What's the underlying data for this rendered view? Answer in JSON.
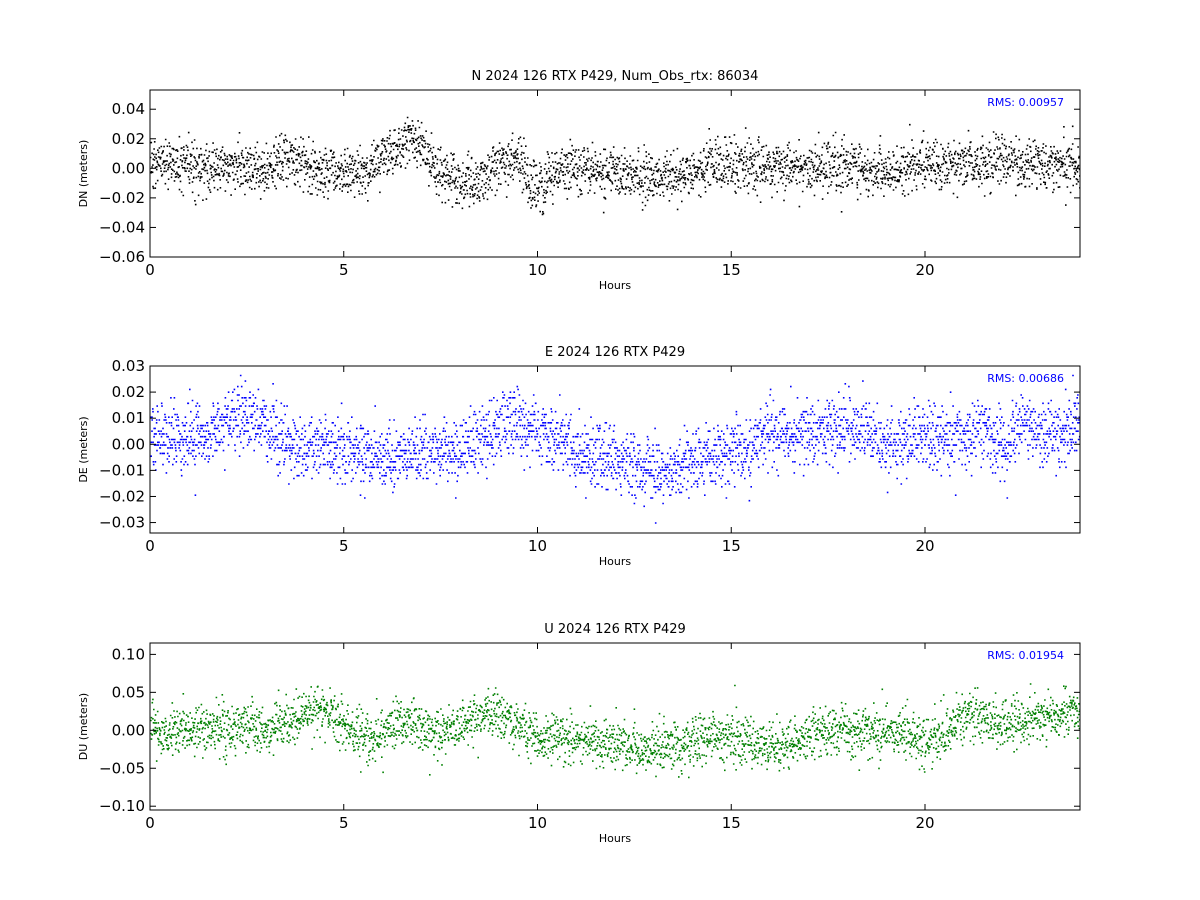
{
  "chart_data": [
    {
      "type": "scatter",
      "title": "N 2024 126 RTX  P429, Num_Obs_rtx: 86034",
      "xlabel": "Hours",
      "ylabel": "DN (meters)",
      "xlim": [
        0,
        24
      ],
      "ylim": [
        -0.06,
        0.053
      ],
      "xticks": [
        0,
        5,
        10,
        15,
        20
      ],
      "xtick_labels": [
        "0",
        "5",
        "10",
        "15",
        "20"
      ],
      "yticks": [
        -0.06,
        -0.04,
        -0.02,
        0.0,
        0.02,
        0.04
      ],
      "ytick_labels": [
        "−0.06",
        "−0.04",
        "−0.02",
        "0.00",
        "0.02",
        "0.04"
      ],
      "annotation": "RMS:  0.00957",
      "annotation_color": "#0000ff",
      "marker_color": "#000000",
      "grid": false,
      "trend_x": [
        0,
        0.5,
        1,
        1.5,
        2,
        2.5,
        3,
        3.5,
        4,
        4.5,
        5,
        5.5,
        6,
        6.5,
        6.75,
        7,
        7.5,
        8,
        8.5,
        9,
        9.5,
        9.75,
        10,
        10.5,
        11,
        11.5,
        12,
        12.5,
        13,
        13.5,
        14,
        14.5,
        15,
        15.5,
        16,
        16.5,
        17,
        17.5,
        18,
        18.5,
        19,
        19.5,
        20,
        20.5,
        21,
        21.5,
        22,
        22.5,
        23,
        23.5,
        24
      ],
      "trend_y": [
        0.002,
        0.006,
        0.001,
        0.0,
        0.002,
        0.0,
        -0.001,
        0.008,
        0.003,
        -0.001,
        -0.003,
        -0.002,
        0.008,
        0.02,
        0.022,
        0.012,
        -0.002,
        -0.01,
        -0.008,
        0.002,
        0.008,
        -0.01,
        -0.014,
        -0.002,
        0.0,
        -0.004,
        0.001,
        -0.004,
        -0.006,
        -0.004,
        -0.001,
        0.001,
        0.002,
        0.002,
        0.001,
        0.002,
        0.0,
        0.002,
        0.003,
        0.001,
        -0.003,
        0.001,
        0.004,
        0.003,
        0.004,
        0.004,
        0.006,
        0.004,
        0.002,
        0.004,
        0.004
      ],
      "spread_sigma": 0.0085,
      "num_points_drawn": 3400
    },
    {
      "type": "scatter",
      "title": "E 2024 126 RTX  P429",
      "xlabel": "Hours",
      "ylabel": "DE (meters)",
      "xlim": [
        0,
        24
      ],
      "ylim": [
        -0.034,
        0.03
      ],
      "xticks": [
        0,
        5,
        10,
        15,
        20
      ],
      "xtick_labels": [
        "0",
        "5",
        "10",
        "15",
        "20"
      ],
      "yticks": [
        -0.03,
        -0.02,
        -0.01,
        0.0,
        0.01,
        0.02,
        0.03
      ],
      "ytick_labels": [
        "−0.03",
        "−0.02",
        "−0.01",
        "0.00",
        "0.01",
        "0.02",
        "0.03"
      ],
      "annotation": "RMS:  0.00686",
      "annotation_color": "#0000ff",
      "marker_color": "#0000ff",
      "grid": false,
      "trend_x": [
        0,
        0.5,
        1,
        1.5,
        2,
        2.5,
        3,
        3.5,
        4,
        4.5,
        5,
        5.5,
        6,
        6.5,
        7,
        7.5,
        8,
        8.5,
        9,
        9.5,
        10,
        10.5,
        11,
        11.5,
        12,
        12.5,
        13,
        13.5,
        14,
        14.5,
        15,
        15.5,
        16,
        16.5,
        17,
        17.5,
        18,
        18.5,
        19,
        19.5,
        20,
        20.5,
        21,
        21.5,
        22,
        22.5,
        23,
        23.5,
        24
      ],
      "trend_y": [
        0.004,
        0.004,
        0.002,
        0.004,
        0.01,
        0.01,
        0.006,
        0.001,
        -0.002,
        0.0,
        -0.003,
        -0.004,
        -0.005,
        -0.004,
        -0.003,
        -0.002,
        -0.003,
        0.002,
        0.008,
        0.009,
        0.004,
        0.002,
        -0.002,
        -0.004,
        -0.006,
        -0.008,
        -0.011,
        -0.01,
        -0.006,
        -0.004,
        -0.002,
        -0.002,
        0.004,
        0.004,
        0.005,
        0.005,
        0.006,
        0.005,
        0.0,
        0.002,
        0.004,
        0.002,
        0.003,
        0.006,
        -0.002,
        0.008,
        0.006,
        0.004,
        0.007
      ],
      "spread_sigma": 0.0062,
      "num_points_drawn": 3600
    },
    {
      "type": "scatter",
      "title": "U 2024 126 RTX  P429",
      "xlabel": "Hours",
      "ylabel": "DU (meters)",
      "xlim": [
        0,
        24
      ],
      "ylim": [
        -0.105,
        0.115
      ],
      "xticks": [
        0,
        5,
        10,
        15,
        20
      ],
      "xtick_labels": [
        "0",
        "5",
        "10",
        "15",
        "20"
      ],
      "yticks": [
        -0.1,
        -0.05,
        0.0,
        0.05,
        0.1
      ],
      "ytick_labels": [
        "−0.10",
        "−0.05",
        "0.00",
        "0.05",
        "0.10"
      ],
      "annotation": "RMS:  0.01954",
      "annotation_color": "#0000ff",
      "marker_color": "#008000",
      "grid": false,
      "trend_x": [
        0,
        0.5,
        1,
        1.5,
        2,
        2.5,
        3,
        3.5,
        4,
        4.5,
        5,
        5.5,
        6,
        6.5,
        7,
        7.5,
        8,
        8.5,
        9,
        9.5,
        10,
        10.5,
        11,
        11.5,
        12,
        12.5,
        13,
        13.5,
        14,
        14.5,
        15,
        15.5,
        16,
        16.5,
        17,
        17.5,
        18,
        18.5,
        19,
        19.5,
        20,
        20.5,
        21,
        21.5,
        22,
        22.5,
        23,
        23.5,
        24
      ],
      "trend_y": [
        0.005,
        0.0,
        0.002,
        0.0,
        0.004,
        0.01,
        0.0,
        0.005,
        0.02,
        0.03,
        0.005,
        -0.01,
        0.0,
        0.015,
        0.0,
        -0.005,
        0.01,
        0.02,
        0.02,
        0.01,
        -0.005,
        -0.01,
        -0.01,
        -0.015,
        -0.015,
        -0.02,
        -0.025,
        -0.02,
        -0.015,
        -0.01,
        -0.01,
        -0.015,
        -0.02,
        -0.015,
        -0.005,
        0.0,
        0.0,
        0.0,
        -0.005,
        0.0,
        -0.015,
        0.0,
        0.02,
        0.02,
        0.01,
        0.015,
        0.02,
        0.025,
        0.02
      ],
      "spread_sigma": 0.016,
      "num_points_drawn": 3400
    }
  ]
}
